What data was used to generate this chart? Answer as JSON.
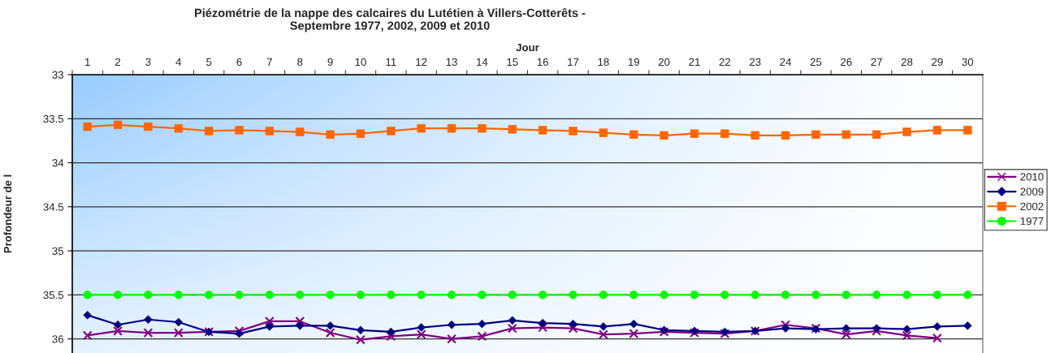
{
  "chart_data": {
    "type": "line",
    "title": "Piézométrie de la nappe des calcaires du Lutétien à Villers-Cotterêts -\nSeptembre 1977, 2002, 2009 et 2010",
    "xlabel": "Jour",
    "ylabel": "Profondeur de l",
    "categories": [
      "1",
      "2",
      "3",
      "4",
      "5",
      "6",
      "7",
      "8",
      "9",
      "10",
      "11",
      "12",
      "13",
      "14",
      "15",
      "16",
      "17",
      "18",
      "19",
      "20",
      "21",
      "22",
      "23",
      "24",
      "25",
      "26",
      "27",
      "28",
      "29",
      "30"
    ],
    "series": [
      {
        "name": "2010",
        "color": "#800080",
        "marker": "cross",
        "values": [
          35.96,
          35.91,
          35.93,
          35.93,
          35.92,
          35.91,
          35.8,
          35.8,
          35.93,
          36.01,
          35.97,
          35.95,
          36.0,
          35.97,
          35.88,
          35.87,
          35.88,
          35.95,
          35.94,
          35.92,
          35.93,
          35.94,
          35.91,
          35.84,
          35.88,
          35.95,
          35.91,
          35.96,
          35.99,
          null
        ]
      },
      {
        "name": "2009",
        "color": "#000080",
        "marker": "diamond",
        "values": [
          35.73,
          35.84,
          35.78,
          35.81,
          35.92,
          35.94,
          35.86,
          35.85,
          35.85,
          35.9,
          35.92,
          35.87,
          35.84,
          35.83,
          35.79,
          35.82,
          35.83,
          35.86,
          35.83,
          35.9,
          35.91,
          35.92,
          35.91,
          35.88,
          35.89,
          35.88,
          35.88,
          35.89,
          35.86,
          35.85
        ]
      },
      {
        "name": "2002",
        "color": "#ff6600",
        "marker": "square",
        "values": [
          33.59,
          33.57,
          33.59,
          33.61,
          33.64,
          33.63,
          33.64,
          33.65,
          33.68,
          33.67,
          33.64,
          33.61,
          33.61,
          33.61,
          33.62,
          33.63,
          33.64,
          33.66,
          33.68,
          33.69,
          33.67,
          33.67,
          33.69,
          33.69,
          33.68,
          33.68,
          33.68,
          33.65,
          33.63,
          33.63
        ]
      },
      {
        "name": "1977",
        "color": "#00ff00",
        "marker": "circle",
        "values": [
          35.5,
          35.5,
          35.5,
          35.5,
          35.5,
          35.5,
          35.5,
          35.5,
          35.5,
          35.5,
          35.5,
          35.5,
          35.5,
          35.5,
          35.5,
          35.5,
          35.5,
          35.5,
          35.5,
          35.5,
          35.5,
          35.5,
          35.5,
          35.5,
          35.5,
          35.5,
          35.5,
          35.5,
          35.5,
          35.5
        ]
      }
    ],
    "ylim": [
      36.16,
      33
    ],
    "yticks": [
      33,
      33.5,
      34,
      34.5,
      35,
      35.5,
      36
    ],
    "grid": "y",
    "legend": "right"
  }
}
